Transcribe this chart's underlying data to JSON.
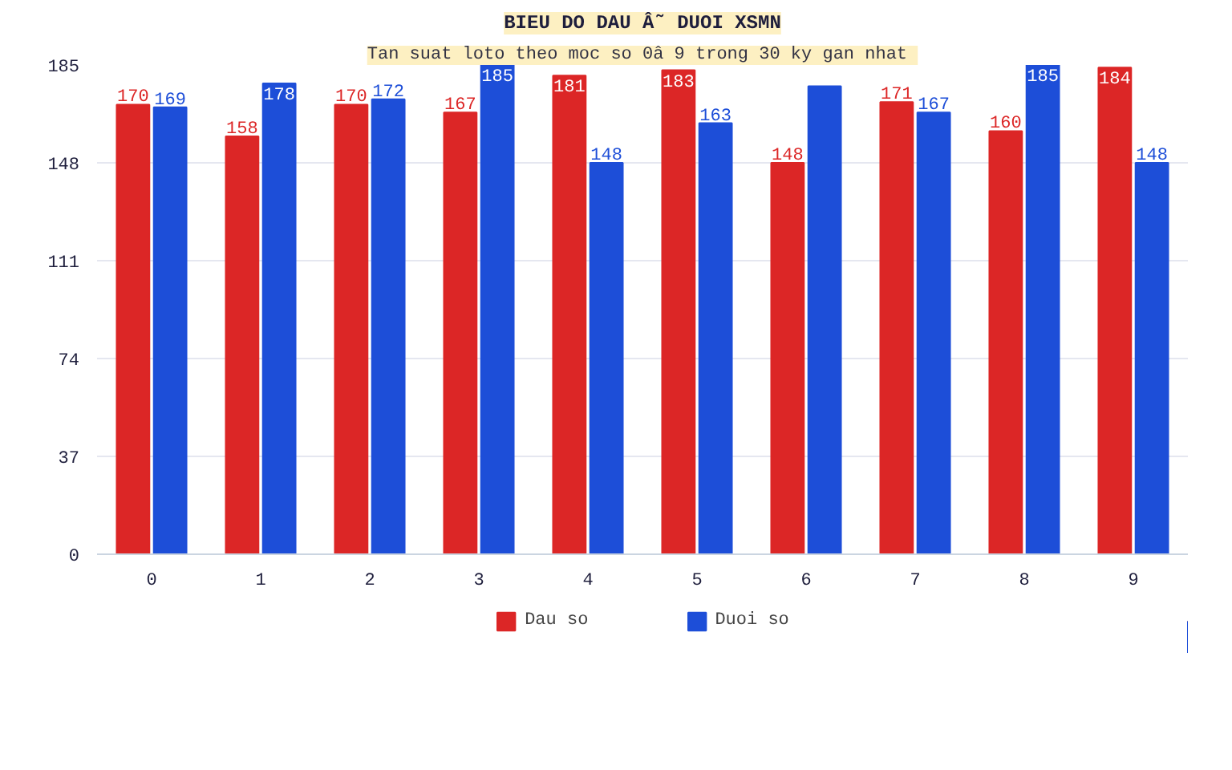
{
  "chart_data": {
    "type": "bar",
    "title": "BIEU DO DAU Â˜ DUOI XSMN",
    "subtitle": "Tan suat loto theo moc so 0â  9 trong 30 ky gan nhat",
    "categories": [
      "0",
      "1",
      "2",
      "3",
      "4",
      "5",
      "6",
      "7",
      "8",
      "9"
    ],
    "series": [
      {
        "name": "Dau so",
        "color": "#dc2626",
        "values": [
          170,
          158,
          170,
          167,
          181,
          183,
          148,
          171,
          160,
          184
        ],
        "value_labels": [
          "170",
          "158",
          "170",
          "167",
          "181",
          "183",
          "148",
          "171",
          "160",
          "184"
        ]
      },
      {
        "name": "Duoi so",
        "color": "#1d4ed8",
        "values": [
          169,
          178,
          172,
          185,
          148,
          163,
          177,
          167,
          185,
          148
        ],
        "value_labels": [
          "169",
          "178",
          "172",
          "185",
          "148",
          "163",
          null,
          "167",
          "185",
          "148"
        ]
      }
    ],
    "ylim": [
      0,
      185
    ],
    "yticks": [
      0,
      37,
      74,
      111,
      148,
      185
    ],
    "grid": "y",
    "legend": "bottom"
  }
}
